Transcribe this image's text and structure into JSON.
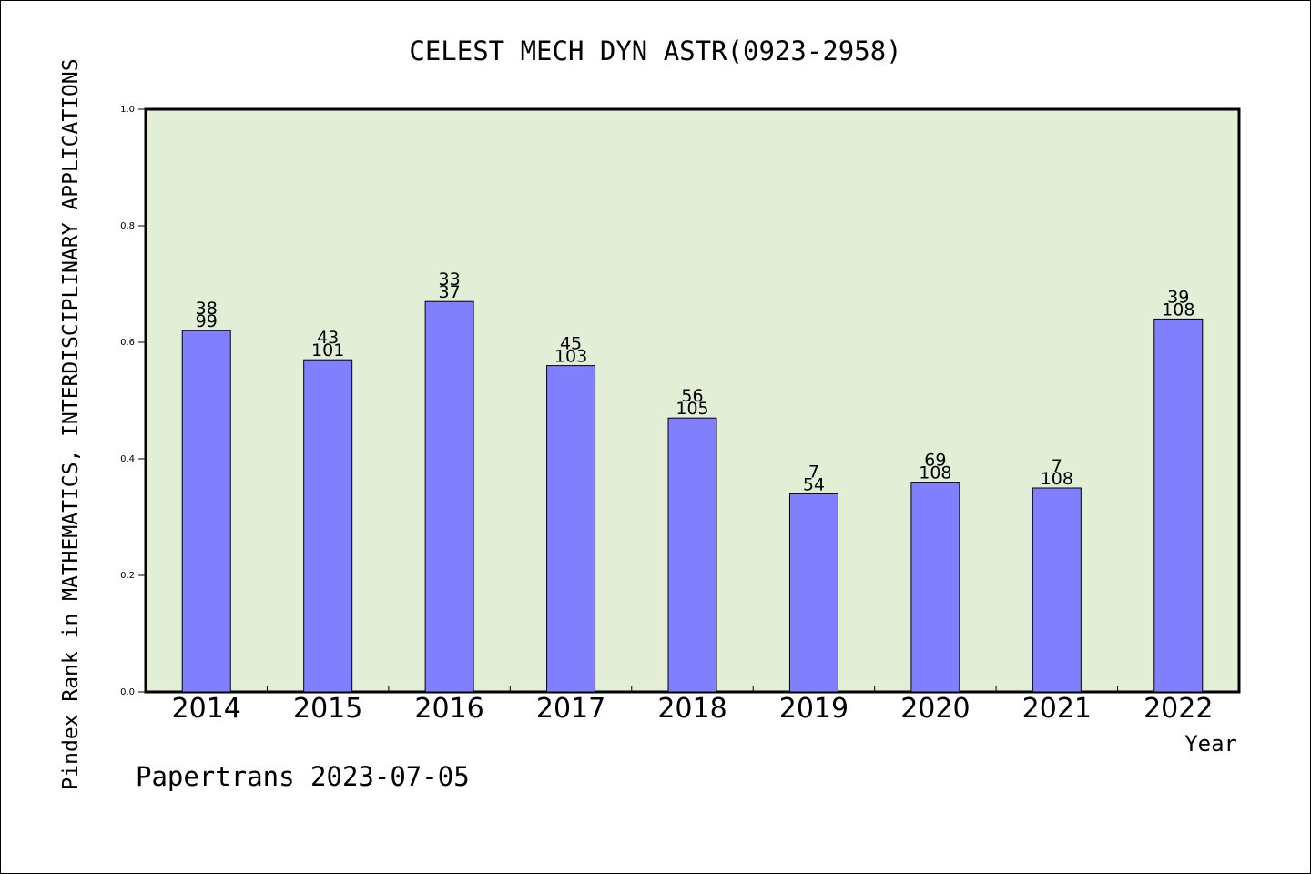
{
  "chart_data": {
    "type": "bar",
    "title": "CELEST MECH DYN ASTR(0923-2958)",
    "xlabel": "Year",
    "ylabel": "Pindex Rank in MATHEMATICS, INTERDISCIPLINARY APPLICATIONS",
    "ylim": [
      0,
      1.0
    ],
    "yticks": [
      "0.0",
      "0.2",
      "0.4",
      "0.6",
      "0.8",
      "1.0"
    ],
    "grid": false,
    "categories": [
      "2014",
      "2015",
      "2016",
      "2017",
      "2018",
      "2019",
      "2020",
      "2021",
      "2022"
    ],
    "values": [
      0.62,
      0.57,
      0.67,
      0.56,
      0.47,
      0.34,
      0.36,
      0.35,
      0.64
    ],
    "rank_labels": [
      "38",
      "43",
      "33",
      "45",
      "56",
      "7",
      "69",
      "7",
      "39"
    ],
    "total_labels": [
      "99",
      "101",
      "37",
      "103",
      "105",
      "54",
      "108",
      "108",
      "108"
    ],
    "footer": "Papertrans 2023-07-05",
    "colors": {
      "plot_background": "#e2efd6",
      "bar_fill": "#8080ff",
      "bar_stroke": "#000000"
    }
  }
}
